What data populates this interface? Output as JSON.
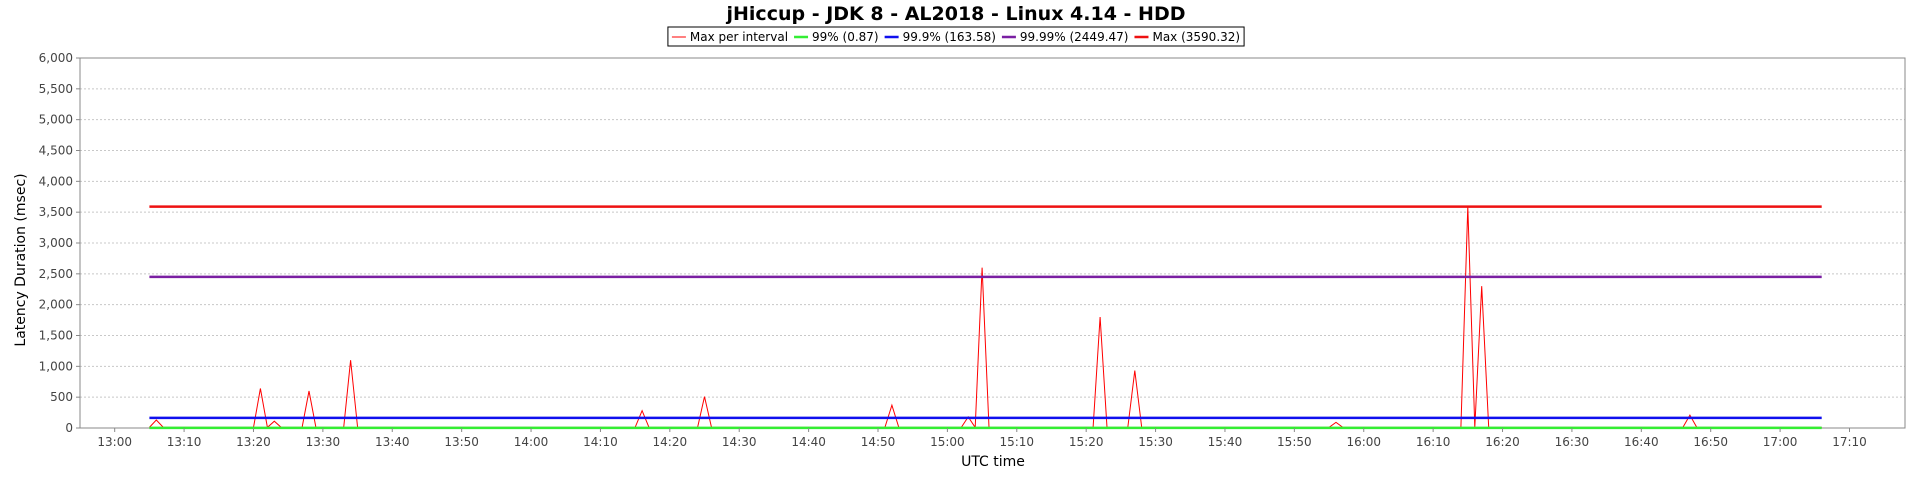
{
  "chart_data": {
    "type": "line",
    "title": "jHiccup - JDK 8 - AL2018 - Linux 4.14 - HDD",
    "xlabel": "UTC time",
    "ylabel": "Latency Duration (msec)",
    "xlim": [
      "12:55",
      "17:18"
    ],
    "ylim": [
      0,
      6000
    ],
    "x_ticks": [
      "13:00",
      "13:10",
      "13:20",
      "13:30",
      "13:40",
      "13:50",
      "14:00",
      "14:10",
      "14:20",
      "14:30",
      "14:40",
      "14:50",
      "15:00",
      "15:10",
      "15:20",
      "15:30",
      "15:40",
      "15:50",
      "16:00",
      "16:10",
      "16:20",
      "16:30",
      "16:40",
      "16:50",
      "17:00",
      "17:10"
    ],
    "y_ticks": [
      0,
      500,
      1000,
      1500,
      2000,
      2500,
      3000,
      3500,
      4000,
      4500,
      5000,
      5500,
      6000
    ],
    "y_tick_labels": [
      "0",
      "500",
      "1,000",
      "1,500",
      "2,000",
      "2,500",
      "3,000",
      "3,500",
      "4,000",
      "4,500",
      "5,000",
      "5,500",
      "6,000"
    ],
    "grid": true,
    "legend_position": "top-center",
    "series": [
      {
        "name": "Max per interval",
        "color": "#ff0000",
        "style": "thin",
        "x": [
          "13:05",
          "13:06",
          "13:07",
          "13:20",
          "13:21",
          "13:22",
          "13:23",
          "13:24",
          "13:27",
          "13:28",
          "13:29",
          "13:33",
          "13:34",
          "13:35",
          "14:15",
          "14:16",
          "14:17",
          "14:24",
          "14:25",
          "14:26",
          "14:51",
          "14:52",
          "14:53",
          "15:02",
          "15:03",
          "15:04",
          "15:05",
          "15:06",
          "15:21",
          "15:22",
          "15:23",
          "15:26",
          "15:27",
          "15:28",
          "15:55",
          "15:56",
          "15:57",
          "16:14",
          "16:15",
          "16:16",
          "16:17",
          "16:18",
          "16:46",
          "16:47",
          "16:48",
          "17:06"
        ],
        "y": [
          10,
          130,
          10,
          10,
          640,
          10,
          110,
          10,
          10,
          600,
          10,
          10,
          1100,
          10,
          10,
          280,
          10,
          10,
          510,
          10,
          10,
          370,
          10,
          10,
          180,
          10,
          2600,
          10,
          10,
          1800,
          10,
          10,
          930,
          10,
          10,
          90,
          10,
          10,
          3590,
          10,
          2300,
          10,
          10,
          210,
          10,
          10
        ]
      },
      {
        "name": "99% (0.87)",
        "color": "#33ee33",
        "style": "thick",
        "x": [
          "13:05",
          "17:06"
        ],
        "y": [
          0.87,
          0.87
        ]
      },
      {
        "name": "99.9% (163.58)",
        "color": "#1010ee",
        "style": "thick",
        "x": [
          "13:05",
          "17:06"
        ],
        "y": [
          163.58,
          163.58
        ]
      },
      {
        "name": "99.99% (2449.47)",
        "color": "#7a1fa2",
        "style": "thick",
        "x": [
          "13:05",
          "17:06"
        ],
        "y": [
          2449.47,
          2449.47
        ]
      },
      {
        "name": "Max (3590.32)",
        "color": "#ee1111",
        "style": "thick",
        "x": [
          "13:05",
          "17:06"
        ],
        "y": [
          3590.32,
          3590.32
        ]
      }
    ]
  }
}
